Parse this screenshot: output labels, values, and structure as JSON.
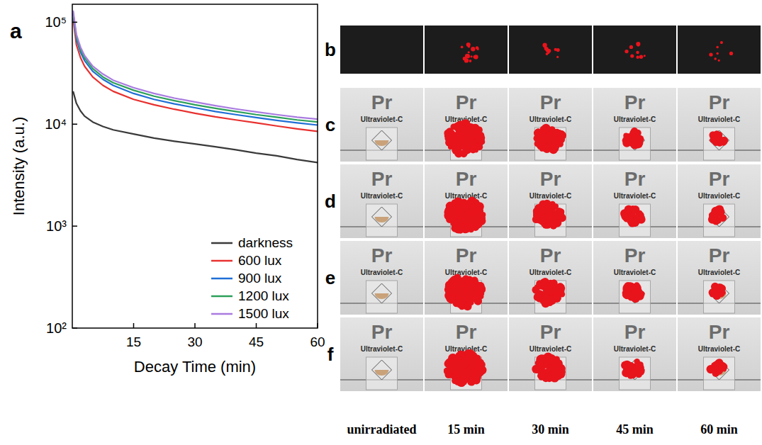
{
  "chart_data": {
    "type": "line",
    "panel_label": "a",
    "x_label": "Decay Time (min)",
    "y_label": "Intensity (a.u.)",
    "log": "y",
    "xlim": [
      0,
      60
    ],
    "xticks": [
      15,
      30,
      45,
      60
    ],
    "ylim": [
      100,
      150000
    ],
    "yticks": [
      {
        "value": 100,
        "label": "10²"
      },
      {
        "value": 1000,
        "label": "10³"
      },
      {
        "value": 10000,
        "label": "10⁴"
      },
      {
        "value": 100000,
        "label": "10⁵"
      }
    ],
    "legend": "lower right",
    "x": [
      0.2,
      1,
      2,
      3,
      5,
      7.5,
      10,
      15,
      20,
      25,
      30,
      35,
      40,
      45,
      50,
      55,
      60
    ],
    "series": [
      {
        "name": "darkness",
        "color": "#3a3a3a",
        "values": [
          21000,
          16000,
          13500,
          12000,
          10500,
          9500,
          8800,
          8000,
          7300,
          6800,
          6400,
          6000,
          5600,
          5200,
          4900,
          4500,
          4200
        ]
      },
      {
        "name": "600 lux",
        "color": "#e8312f",
        "values": [
          110000,
          60000,
          45000,
          37000,
          29000,
          24000,
          21000,
          17500,
          15500,
          14000,
          12800,
          11800,
          11000,
          10300,
          9600,
          9000,
          8500
        ]
      },
      {
        "name": "900 lux",
        "color": "#1f6fd6",
        "values": [
          120000,
          68000,
          51000,
          42000,
          33000,
          27500,
          24000,
          20000,
          17500,
          15800,
          14500,
          13300,
          12400,
          11600,
          10900,
          10300,
          9800
        ]
      },
      {
        "name": "1200 lux",
        "color": "#2ca05a",
        "values": [
          125000,
          72000,
          54000,
          44500,
          35000,
          29000,
          25500,
          21500,
          18800,
          17000,
          15500,
          14300,
          13300,
          12400,
          11700,
          11000,
          10500
        ]
      },
      {
        "name": "1500 lux",
        "color": "#a97be0",
        "values": [
          130000,
          76000,
          57000,
          47000,
          37000,
          31000,
          27000,
          22800,
          20000,
          18000,
          16500,
          15200,
          14100,
          13200,
          12400,
          11700,
          11200
        ]
      }
    ]
  },
  "photo_grid": {
    "rows": [
      "b",
      "c",
      "d",
      "e",
      "f"
    ],
    "columns": [
      "unirradiated",
      "15 min",
      "30 min",
      "45 min",
      "60 min"
    ],
    "photo_texts": [
      "Pr",
      "Ultraviolet-C"
    ]
  }
}
